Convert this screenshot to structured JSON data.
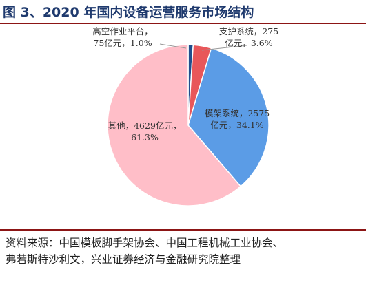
{
  "title": "图 3、2020 年国内设备运营服务市场结构",
  "chart_data": {
    "type": "pie",
    "unit": "亿元",
    "slices": [
      {
        "name": "高空作业平台",
        "value": 75,
        "percent": "1.0%",
        "color": "#1f4e8c",
        "label_lines": [
          "高空作业平台，",
          "75亿元，1.0%"
        ]
      },
      {
        "name": "支护系统",
        "value": 275,
        "percent": "3.6%",
        "color": "#e8575a",
        "label_lines": [
          "支护系统，275",
          "亿元，3.6%"
        ]
      },
      {
        "name": "模架系统",
        "value": 2575,
        "percent": "34.1%",
        "color": "#5b9ce6",
        "label_lines": [
          "模架系统，2575",
          "亿元，34.1%"
        ]
      },
      {
        "name": "其他",
        "value": 4629,
        "percent": "61.3%",
        "color": "#ffbec8",
        "label_lines": [
          "其他，4629亿元，",
          "61.3%"
        ]
      }
    ]
  },
  "source": {
    "line1": "资料来源：中国模板脚手架协会、中国工程机械工业协会、",
    "line2": "弗若斯特沙利文，兴业证券经济与金融研究院整理"
  }
}
